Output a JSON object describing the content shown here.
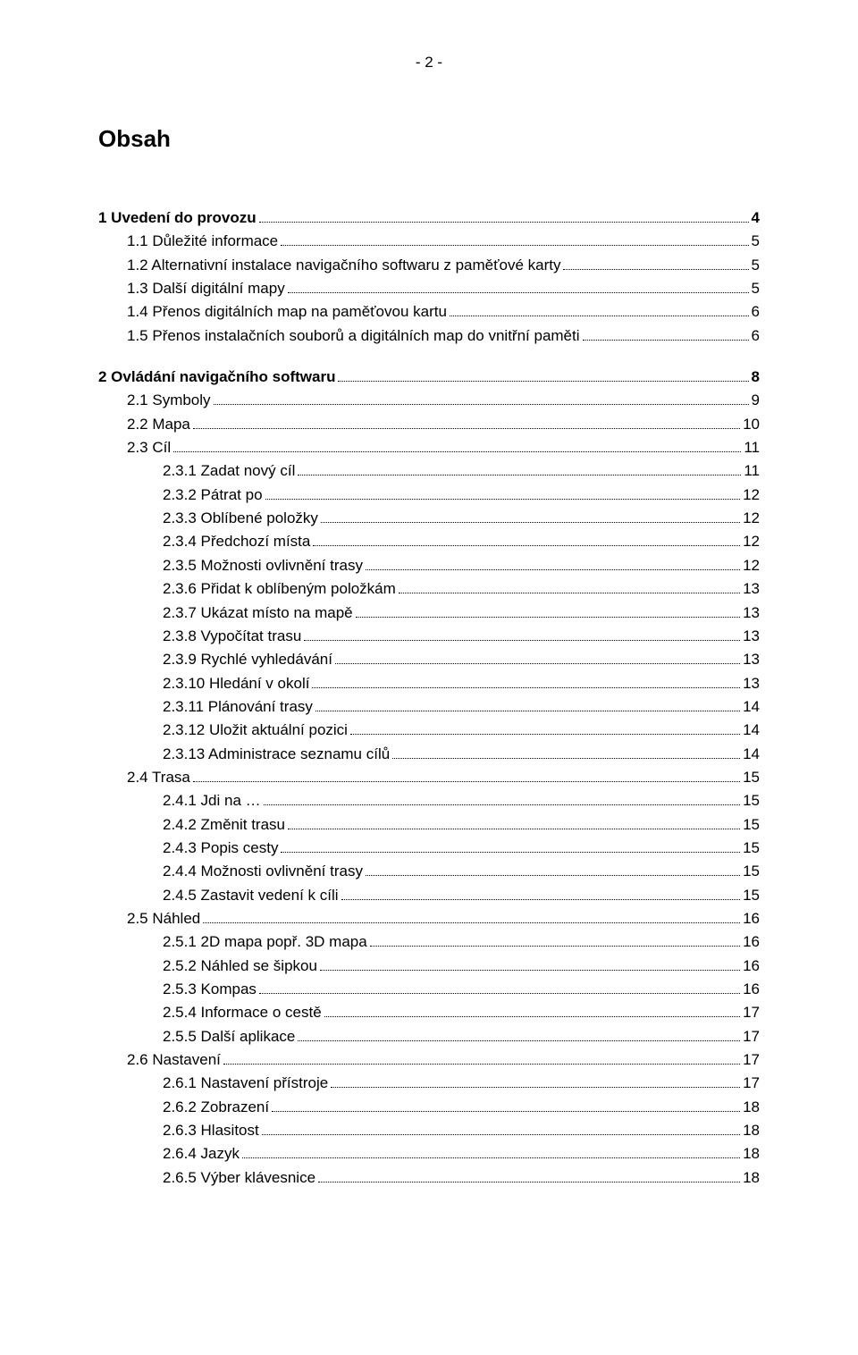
{
  "pageHeader": "- 2 -",
  "title": "Obsah",
  "entries": [
    {
      "indent": 0,
      "label": "1 Uvedení do provozu",
      "page": "4",
      "gapBefore": false
    },
    {
      "indent": 1,
      "label": "1.1 Důležité informace",
      "page": "5"
    },
    {
      "indent": 1,
      "label": "1.2 Alternativní instalace navigačního softwaru z paměťové karty",
      "page": "5"
    },
    {
      "indent": 1,
      "label": "1.3 Další digitální mapy",
      "page": "5"
    },
    {
      "indent": 1,
      "label": "1.4 Přenos digitálních map na paměťovou kartu",
      "page": "6"
    },
    {
      "indent": 1,
      "label": "1.5 Přenos instalačních souborů a digitálních map do vnitřní paměti",
      "page": "6"
    },
    {
      "indent": 0,
      "label": "2 Ovládání navigačního softwaru",
      "page": "8",
      "gapBefore": true
    },
    {
      "indent": 1,
      "label": "2.1 Symboly",
      "page": "9"
    },
    {
      "indent": 1,
      "label": "2.2 Mapa",
      "page": "10"
    },
    {
      "indent": 1,
      "label": "2.3 Cíl",
      "page": "11"
    },
    {
      "indent": 2,
      "label": "2.3.1 Zadat nový cíl",
      "page": "11"
    },
    {
      "indent": 2,
      "label": "2.3.2 Pátrat po",
      "page": "12"
    },
    {
      "indent": 2,
      "label": "2.3.3 Oblíbené položky",
      "page": "12"
    },
    {
      "indent": 2,
      "label": "2.3.4 Předchozí místa",
      "page": "12"
    },
    {
      "indent": 2,
      "label": "2.3.5 Možnosti ovlivnění trasy",
      "page": "12"
    },
    {
      "indent": 2,
      "label": "2.3.6 Přidat k oblíbeným položkám",
      "page": "13"
    },
    {
      "indent": 2,
      "label": "2.3.7 Ukázat místo na mapě",
      "page": "13"
    },
    {
      "indent": 2,
      "label": "2.3.8 Vypočítat trasu",
      "page": "13"
    },
    {
      "indent": 2,
      "label": "2.3.9 Rychlé vyhledávání",
      "page": "13"
    },
    {
      "indent": 2,
      "label": "2.3.10 Hledání v okolí",
      "page": "13"
    },
    {
      "indent": 2,
      "label": "2.3.11 Plánování trasy",
      "page": "14"
    },
    {
      "indent": 2,
      "label": "2.3.12 Uložit aktuální pozici",
      "page": "14"
    },
    {
      "indent": 2,
      "label": "2.3.13 Administrace seznamu cílů",
      "page": "14"
    },
    {
      "indent": 1,
      "label": "2.4 Trasa",
      "page": "15"
    },
    {
      "indent": 2,
      "label": "2.4.1 Jdi na …",
      "page": "15"
    },
    {
      "indent": 2,
      "label": "2.4.2 Změnit trasu",
      "page": "15"
    },
    {
      "indent": 2,
      "label": "2.4.3 Popis cesty",
      "page": "15"
    },
    {
      "indent": 2,
      "label": "2.4.4 Možnosti ovlivnění trasy",
      "page": "15"
    },
    {
      "indent": 2,
      "label": "2.4.5 Zastavit vedení k cíli",
      "page": "15"
    },
    {
      "indent": 1,
      "label": "2.5 Náhled",
      "page": "16"
    },
    {
      "indent": 2,
      "label": "2.5.1 2D mapa popř. 3D mapa",
      "page": "16"
    },
    {
      "indent": 2,
      "label": "2.5.2 Náhled se šipkou",
      "page": "16"
    },
    {
      "indent": 2,
      "label": "2.5.3 Kompas",
      "page": "16"
    },
    {
      "indent": 2,
      "label": "2.5.4 Informace o cestě",
      "page": "17"
    },
    {
      "indent": 2,
      "label": "2.5.5 Další aplikace",
      "page": "17"
    },
    {
      "indent": 1,
      "label": "2.6 Nastavení",
      "page": "17"
    },
    {
      "indent": 2,
      "label": "2.6.1 Nastavení přístroje",
      "page": "17"
    },
    {
      "indent": 2,
      "label": "2.6.2 Zobrazení",
      "page": "18"
    },
    {
      "indent": 2,
      "label": "2.6.3 Hlasitost",
      "page": "18"
    },
    {
      "indent": 2,
      "label": "2.6.4 Jazyk",
      "page": "18"
    },
    {
      "indent": 2,
      "label": "2.6.5 Výber klávesnice",
      "page": "18"
    }
  ]
}
